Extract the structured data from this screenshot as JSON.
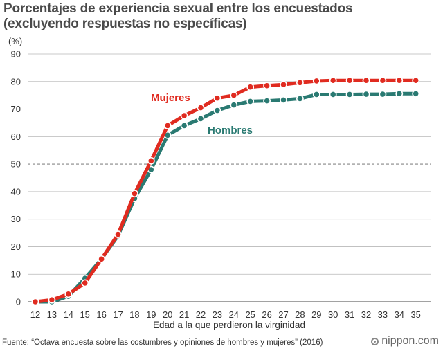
{
  "title": {
    "line1": "Porcentajes de experiencia sexual entre los encuestados",
    "line2": "(excluyendo respuestas no específicas)"
  },
  "footer": {
    "source": "Fuente: “Octava encuesta sobre las costumbres y opiniones de hombres y mujeres” (2016)",
    "brand": "nippon.com"
  },
  "chart_data": {
    "type": "line",
    "unit_label": "(%)",
    "xlabel": "Edad a la que perdieron la virginidad",
    "ylabel": "",
    "x": [
      12,
      13,
      14,
      15,
      16,
      17,
      18,
      19,
      20,
      21,
      22,
      23,
      24,
      25,
      26,
      27,
      28,
      29,
      30,
      31,
      32,
      33,
      34,
      35
    ],
    "ylim": [
      0,
      90
    ],
    "yticks": [
      0,
      10,
      20,
      30,
      40,
      50,
      60,
      70,
      80,
      90
    ],
    "reference_line": 50,
    "grid": true,
    "series": [
      {
        "name": "Hombres",
        "color": "#2a7a72",
        "values": [
          0,
          0,
          2,
          8.5,
          15.5,
          24,
          37.5,
          48,
          60.5,
          64,
          66.5,
          69.5,
          71.5,
          72.8,
          73,
          73.3,
          73.8,
          75.3,
          75.3,
          75.3,
          75.4,
          75.4,
          75.6,
          75.6
        ]
      },
      {
        "name": "Mujeres",
        "color": "#e02b20",
        "values": [
          0,
          0.7,
          2.8,
          6.8,
          15.5,
          24.5,
          39.3,
          51.2,
          64,
          67.6,
          70.5,
          74,
          75,
          78,
          78.5,
          78.9,
          79.6,
          80.2,
          80.4,
          80.4,
          80.4,
          80.4,
          80.4,
          80.4
        ]
      }
    ]
  }
}
